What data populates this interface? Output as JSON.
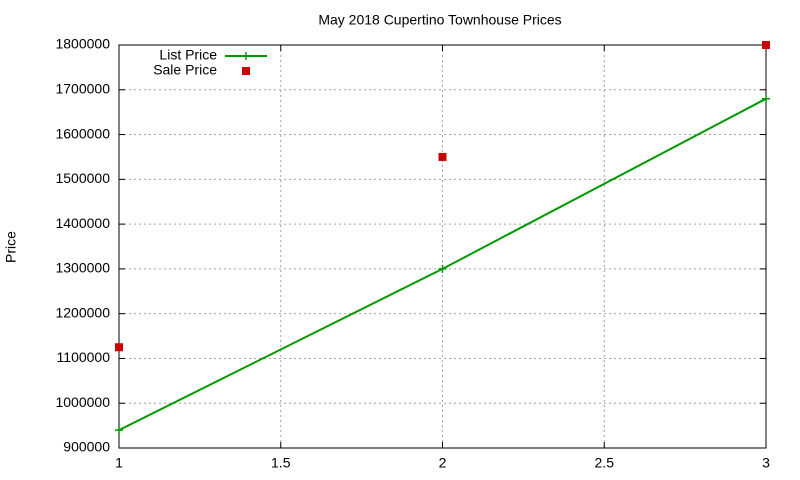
{
  "chart_data": {
    "type": "line",
    "title": "May 2018 Cupertino Townhouse Prices",
    "y_label": "Price",
    "x": [
      1,
      2,
      3
    ],
    "series": [
      {
        "name": "List Price",
        "color": "#009900",
        "style": "linespoints",
        "values": [
          940000,
          1300000,
          1680000
        ]
      },
      {
        "name": "Sale Price",
        "color": "#cc0000",
        "style": "points",
        "values": [
          1125000,
          1550000,
          1800000
        ]
      }
    ],
    "xlim": [
      1,
      3
    ],
    "xticks": [
      1,
      1.5,
      2,
      2.5,
      3
    ],
    "ylim": [
      900000,
      1800000
    ],
    "yticks": [
      900000,
      1000000,
      1100000,
      1200000,
      1300000,
      1400000,
      1500000,
      1600000,
      1700000,
      1800000
    ],
    "grid": true,
    "legend": "top-left"
  }
}
